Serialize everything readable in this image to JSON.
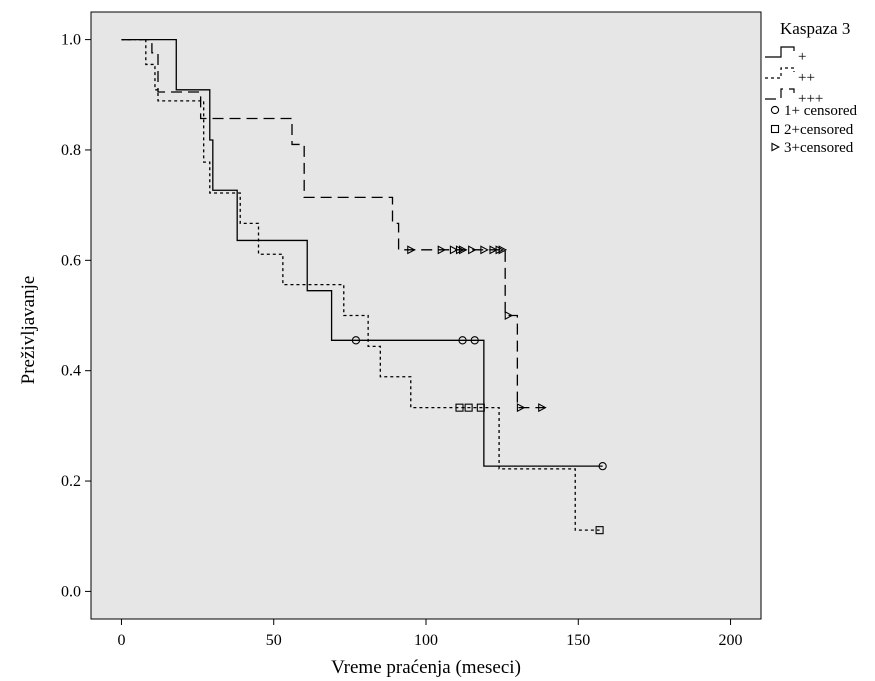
{
  "chart_data": {
    "type": "line",
    "subtype": "kaplan-meier-step",
    "xlabel": "Vreme praćenja (meseci)",
    "ylabel": "Preživljavanje",
    "xlim": [
      -10,
      210
    ],
    "ylim": [
      -0.05,
      1.05
    ],
    "xticks": [
      0,
      50,
      100,
      150,
      200
    ],
    "yticks": [
      0.0,
      0.2,
      0.4,
      0.6,
      0.8,
      1.0
    ],
    "xtick_labels": [
      "0",
      "50",
      "100",
      "150",
      "200"
    ],
    "ytick_labels": [
      "0.0",
      "0.2",
      "0.4",
      "0.6",
      "0.8",
      "1.0"
    ],
    "grid": false,
    "legend_position": "right",
    "legend_title": "Kaspaza 3",
    "plot_background": "#e6e6e6",
    "series": [
      {
        "name": "+",
        "line_style": "solid",
        "steps": [
          [
            0,
            1.0
          ],
          [
            18,
            0.909
          ],
          [
            29,
            0.818
          ],
          [
            30,
            0.727
          ],
          [
            38,
            0.636
          ],
          [
            61,
            0.545
          ],
          [
            69,
            0.455
          ],
          [
            119,
            0.227
          ],
          [
            158,
            0.227
          ]
        ],
        "censored": [
          [
            77,
            0.455
          ],
          [
            112,
            0.455
          ],
          [
            116,
            0.455
          ],
          [
            158,
            0.227
          ]
        ],
        "censor_marker": "circle"
      },
      {
        "name": "++",
        "line_style": "dotted",
        "steps": [
          [
            0,
            1.0
          ],
          [
            8,
            0.955
          ],
          [
            11,
            0.909
          ],
          [
            12,
            0.889
          ],
          [
            27,
            0.778
          ],
          [
            29,
            0.722
          ],
          [
            39,
            0.667
          ],
          [
            45,
            0.611
          ],
          [
            53,
            0.556
          ],
          [
            73,
            0.5
          ],
          [
            81,
            0.444
          ],
          [
            85,
            0.389
          ],
          [
            95,
            0.333
          ],
          [
            124,
            0.222
          ],
          [
            149,
            0.111
          ],
          [
            157,
            0.111
          ]
        ],
        "censored": [
          [
            111,
            0.333
          ],
          [
            114,
            0.333
          ],
          [
            118,
            0.333
          ],
          [
            157,
            0.111
          ]
        ],
        "censor_marker": "square"
      },
      {
        "name": "+++",
        "line_style": "dashed",
        "steps": [
          [
            0,
            1.0
          ],
          [
            10,
            0.976
          ],
          [
            12,
            0.905
          ],
          [
            26,
            0.857
          ],
          [
            56,
            0.81
          ],
          [
            60,
            0.714
          ],
          [
            89,
            0.667
          ],
          [
            91,
            0.619
          ],
          [
            126,
            0.5
          ],
          [
            130,
            0.333
          ],
          [
            139,
            0.333
          ]
        ],
        "censored": [
          [
            95,
            0.619
          ],
          [
            105,
            0.619
          ],
          [
            109,
            0.619
          ],
          [
            111,
            0.619
          ],
          [
            112,
            0.619
          ],
          [
            115,
            0.619
          ],
          [
            119,
            0.619
          ],
          [
            122,
            0.619
          ],
          [
            124,
            0.619
          ],
          [
            125,
            0.619
          ],
          [
            127,
            0.5
          ],
          [
            131,
            0.333
          ],
          [
            138,
            0.333
          ]
        ],
        "censor_marker": "triangle-right"
      }
    ],
    "legend_entries": [
      {
        "label": "+",
        "kind": "line",
        "line_style": "solid"
      },
      {
        "label": "++",
        "kind": "line",
        "line_style": "dotted"
      },
      {
        "label": "+++",
        "kind": "line",
        "line_style": "dashed"
      },
      {
        "label": "1+ censored",
        "kind": "marker",
        "marker": "circle"
      },
      {
        "label": "2+censored",
        "kind": "marker",
        "marker": "square"
      },
      {
        "label": "3+censored",
        "kind": "marker",
        "marker": "triangle-right"
      }
    ]
  }
}
